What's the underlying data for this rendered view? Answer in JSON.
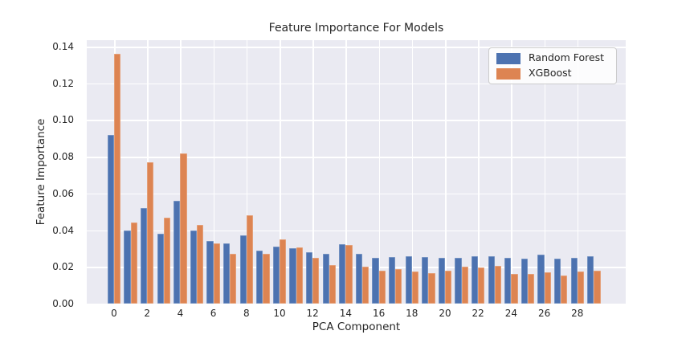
{
  "figure": {
    "title": "Feature Importance For Models",
    "xlabel": "PCA Component",
    "ylabel": "Feature Importance",
    "plot_background": "#eaeaf2",
    "grid_color": "#ffffff",
    "text_color": "#262626"
  },
  "chart_data": {
    "type": "bar",
    "title": "Feature Importance For Models",
    "xlabel": "PCA Component",
    "ylabel": "Feature Importance",
    "categories": [
      0,
      1,
      2,
      3,
      4,
      5,
      6,
      7,
      8,
      9,
      10,
      11,
      12,
      13,
      14,
      15,
      16,
      17,
      18,
      19,
      20,
      21,
      22,
      23,
      24,
      25,
      26,
      27,
      28,
      29
    ],
    "series": [
      {
        "name": "Random Forest",
        "color": "#4c72b0",
        "values": [
          0.092,
          0.04,
          0.052,
          0.038,
          0.056,
          0.04,
          0.034,
          0.033,
          0.037,
          0.029,
          0.031,
          0.03,
          0.028,
          0.027,
          0.0325,
          0.027,
          0.025,
          0.0255,
          0.026,
          0.0255,
          0.025,
          0.025,
          0.026,
          0.026,
          0.025,
          0.0245,
          0.0265,
          0.0245,
          0.025,
          0.026
        ]
      },
      {
        "name": "XGBoost",
        "color": "#dd8452",
        "values": [
          0.136,
          0.044,
          0.077,
          0.047,
          0.082,
          0.043,
          0.033,
          0.027,
          0.048,
          0.027,
          0.035,
          0.0305,
          0.025,
          0.021,
          0.032,
          0.02,
          0.018,
          0.019,
          0.0175,
          0.0165,
          0.018,
          0.02,
          0.0195,
          0.0205,
          0.016,
          0.016,
          0.017,
          0.0155,
          0.0175,
          0.018
        ]
      }
    ],
    "ylim": [
      0,
      0.1435
    ],
    "yticks": [
      0.0,
      0.02,
      0.04,
      0.06,
      0.08,
      0.1,
      0.12,
      0.14
    ],
    "xticks": [
      0,
      2,
      4,
      6,
      8,
      10,
      12,
      14,
      16,
      18,
      20,
      22,
      24,
      26,
      28
    ],
    "grid": true,
    "legend_position": "upper right"
  }
}
